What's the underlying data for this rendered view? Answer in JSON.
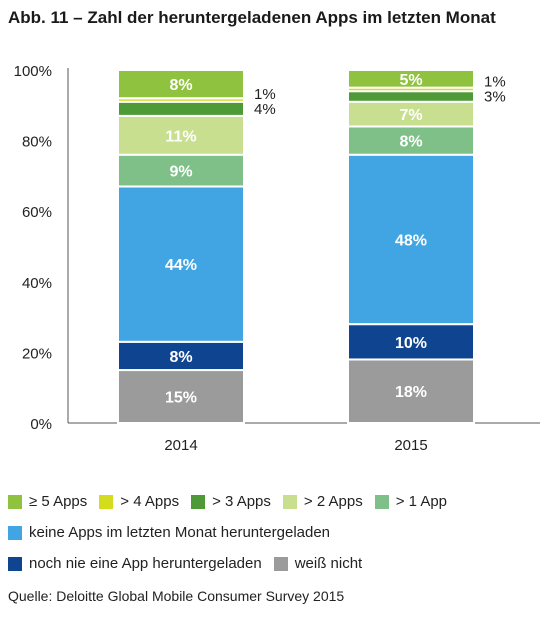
{
  "title": "Abb. 11 – Zahl der heruntergeladenen Apps im letzten Monat",
  "source": "Quelle: Deloitte Global Mobile Consumer Survey 2015",
  "legend_rows": [
    [
      {
        "label": "≥ 5 Apps",
        "color": "#8fc23f"
      },
      {
        "label": "> 4 Apps",
        "color": "#d4dc1e"
      },
      {
        "label": "> 3 Apps",
        "color": "#4e9a37"
      },
      {
        "label": "> 2 Apps",
        "color": "#c7df8f"
      },
      {
        "label": "> 1 App",
        "color": "#7fbf88"
      }
    ],
    [
      {
        "label": "keine Apps im letzten Monat heruntergeladen",
        "color": "#42a5e3"
      }
    ],
    [
      {
        "label": "noch nie eine App heruntergeladen",
        "color": "#0f4490"
      },
      {
        "label": "weiß nicht",
        "color": "#9b9b9b"
      }
    ]
  ],
  "chart_data": {
    "type": "bar",
    "stacked": true,
    "categories": [
      "2014",
      "2015"
    ],
    "y_ticks": [
      "0%",
      "20%",
      "40%",
      "60%",
      "80%",
      "100%"
    ],
    "ylim": [
      0,
      100
    ],
    "series": [
      {
        "name": "weiß nicht",
        "color": "#9b9b9b",
        "values": [
          15,
          18
        ],
        "labels": [
          "15%",
          "18%"
        ],
        "label_style": "inside"
      },
      {
        "name": "noch nie eine App heruntergeladen",
        "color": "#0f4490",
        "values": [
          8,
          10
        ],
        "labels": [
          "8%",
          "10%"
        ],
        "label_style": "inside"
      },
      {
        "name": "keine Apps im letzten Monat heruntergeladen",
        "color": "#42a5e3",
        "values": [
          44,
          48
        ],
        "labels": [
          "44%",
          "48%"
        ],
        "label_style": "inside"
      },
      {
        "name": "> 1 App",
        "color": "#7fbf88",
        "values": [
          9,
          8
        ],
        "labels": [
          "9%",
          "8%"
        ],
        "label_style": "inside"
      },
      {
        "name": "> 2 Apps",
        "color": "#c7df8f",
        "values": [
          11,
          7
        ],
        "labels": [
          "11%",
          "7%"
        ],
        "label_style": "inside"
      },
      {
        "name": "> 3 Apps",
        "color": "#4e9a37",
        "values": [
          4,
          3
        ],
        "labels": [
          "4%",
          "3%"
        ],
        "label_style": "outside"
      },
      {
        "name": "> 4 Apps",
        "color": "#d4dc1e",
        "values": [
          1,
          1
        ],
        "labels": [
          "1%",
          "1%"
        ],
        "label_style": "outside"
      },
      {
        "name": "≥ 5 Apps",
        "color": "#8fc23f",
        "values": [
          8,
          5
        ],
        "labels": [
          "8%",
          "5%"
        ],
        "label_style": "inside"
      }
    ]
  }
}
